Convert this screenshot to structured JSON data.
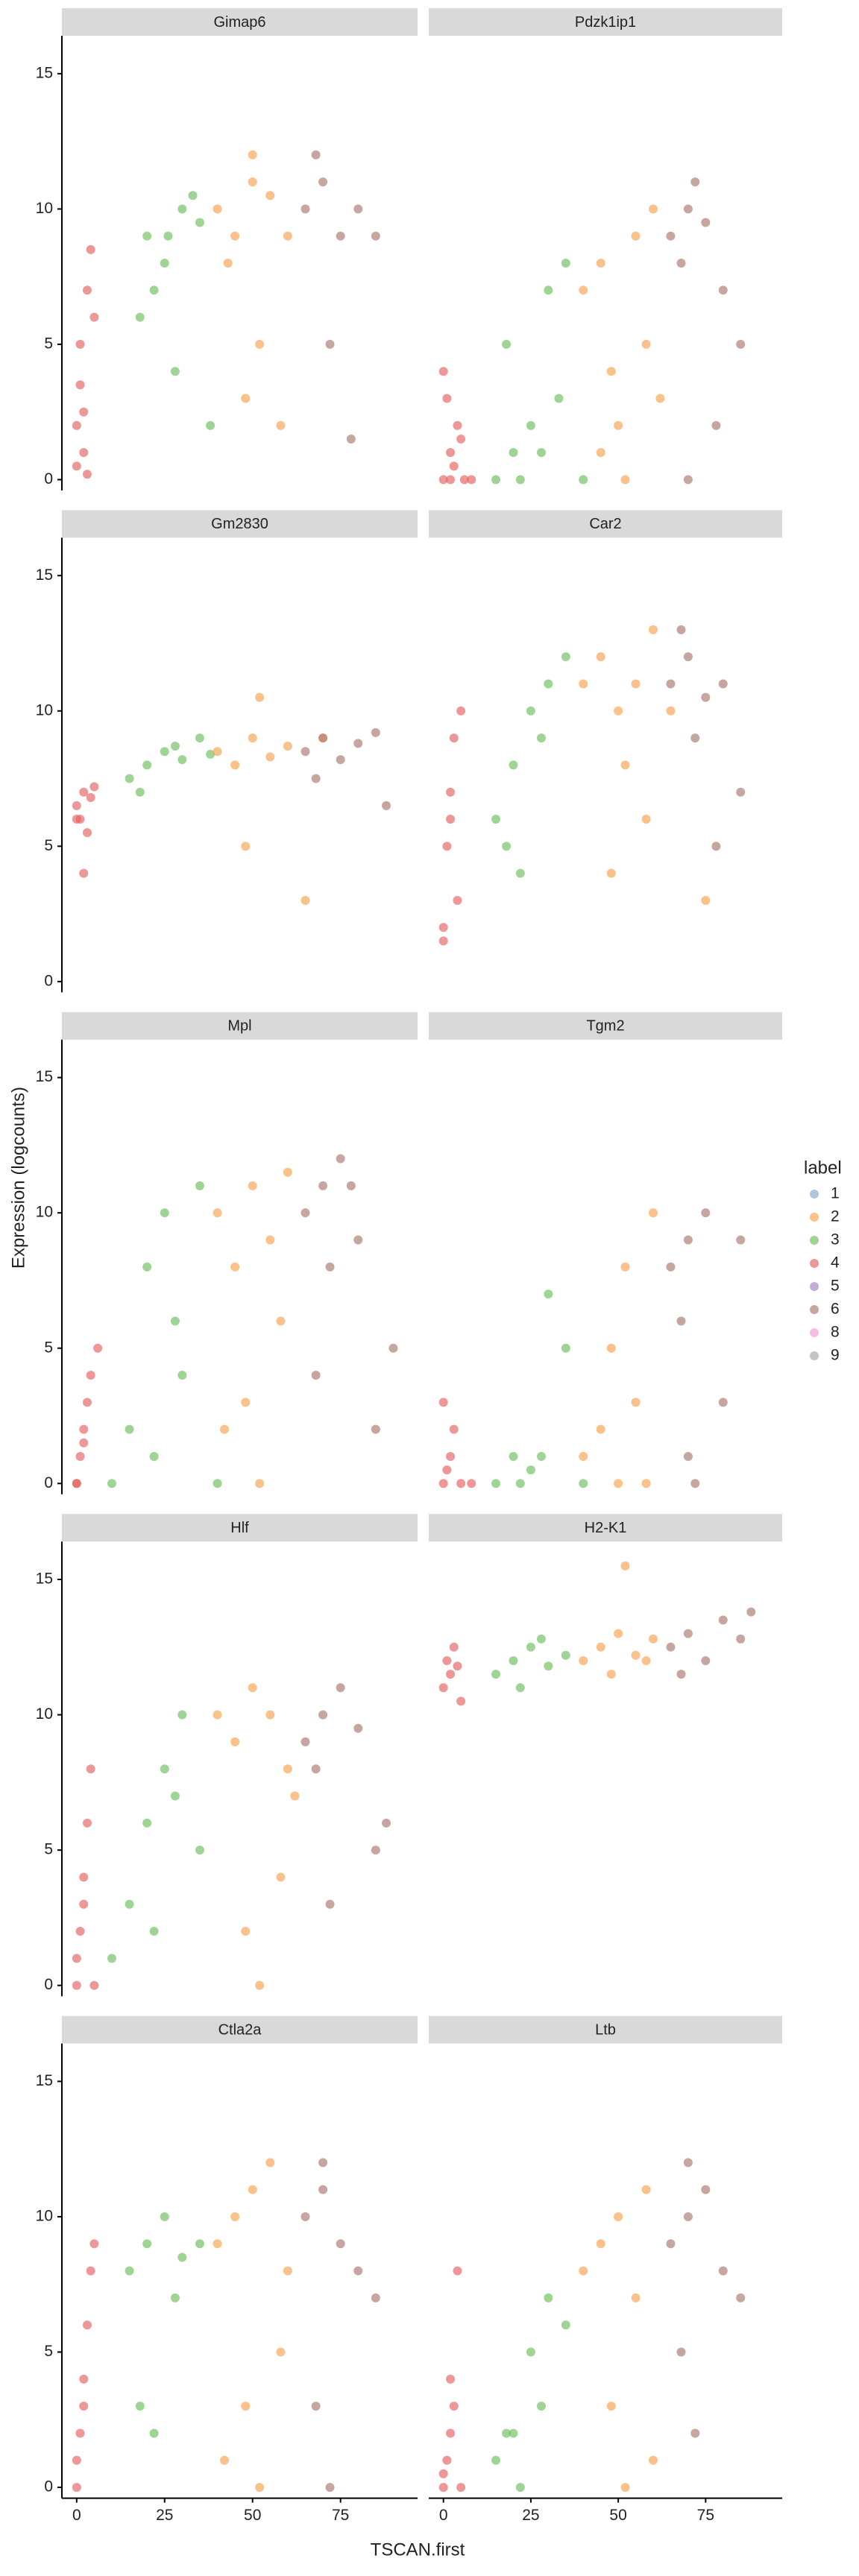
{
  "chart_data": {
    "type": "scatter",
    "xlabel": "TSCAN.first",
    "ylabel": "Expression (logcounts)",
    "legend_title": "label",
    "series": [
      {
        "name": "1",
        "color": "#7fa9cf"
      },
      {
        "name": "2",
        "color": "#f9a04c"
      },
      {
        "name": "3",
        "color": "#6cbf5a"
      },
      {
        "name": "4",
        "color": "#e4605e"
      },
      {
        "name": "5",
        "color": "#a57fc5"
      },
      {
        "name": "6",
        "color": "#a9776b"
      },
      {
        "name": "8",
        "color": "#f29ad6"
      },
      {
        "name": "9",
        "color": "#a5a5a5"
      }
    ],
    "xlim": [
      -4.2,
      96.9
    ],
    "ylim": [
      -0.4,
      16.4
    ],
    "xticks": [
      0,
      25,
      50,
      75
    ],
    "yticks": [
      0,
      5,
      10,
      15
    ],
    "facets": [
      {
        "title": "Gimap6",
        "groups": [
          {
            "name": "4",
            "x": [
              0,
              1,
              2,
              3,
              0,
              4,
              1,
              2,
              5,
              3
            ],
            "y": [
              2,
              3.5,
              1,
              7,
              0.5,
              8.5,
              5,
              2.5,
              6,
              0.2
            ]
          },
          {
            "name": "3",
            "x": [
              20,
              25,
              30,
              18,
              35,
              28,
              22,
              33,
              38,
              26
            ],
            "y": [
              9,
              8,
              10,
              6,
              9.5,
              4,
              7,
              10.5,
              2,
              9
            ]
          },
          {
            "name": "2",
            "x": [
              40,
              45,
              50,
              55,
              60,
              48,
              52,
              58,
              43,
              50
            ],
            "y": [
              10,
              9,
              11,
              10.5,
              9,
              3,
              5,
              2,
              8,
              12
            ]
          },
          {
            "name": "6",
            "x": [
              65,
              70,
              75,
              80,
              68,
              72,
              85,
              78
            ],
            "y": [
              10,
              11,
              9,
              10,
              12,
              5,
              9,
              1.5
            ]
          }
        ]
      },
      {
        "title": "Pdzk1ip1",
        "groups": [
          {
            "name": "4",
            "x": [
              0,
              2,
              4,
              1,
              3,
              6,
              0,
              5,
              2,
              8
            ],
            "y": [
              0,
              1,
              2,
              3,
              0.5,
              0,
              4,
              1.5,
              0,
              0
            ]
          },
          {
            "name": "3",
            "x": [
              15,
              20,
              25,
              30,
              35,
              22,
              28,
              18,
              33,
              40
            ],
            "y": [
              0,
              1,
              2,
              7,
              8,
              0,
              1,
              5,
              3,
              0
            ]
          },
          {
            "name": "2",
            "x": [
              40,
              45,
              50,
              55,
              60,
              48,
              52,
              58,
              62,
              45
            ],
            "y": [
              7,
              8,
              2,
              9,
              10,
              4,
              0,
              5,
              3,
              1
            ]
          },
          {
            "name": "6",
            "x": [
              65,
              70,
              75,
              68,
              72,
              80,
              78,
              85,
              70
            ],
            "y": [
              9,
              10,
              9.5,
              8,
              11,
              7,
              2,
              5,
              0
            ]
          }
        ]
      },
      {
        "title": "Gm2830",
        "groups": [
          {
            "name": "4",
            "x": [
              0,
              1,
              2,
              3,
              4,
              5,
              2,
              0
            ],
            "y": [
              6.5,
              6,
              7,
              5.5,
              6.8,
              7.2,
              4,
              6
            ]
          },
          {
            "name": "3",
            "x": [
              15,
              20,
              25,
              30,
              35,
              18,
              28,
              38
            ],
            "y": [
              7.5,
              8,
              8.5,
              8.2,
              9,
              7,
              8.7,
              8.4
            ]
          },
          {
            "name": "2",
            "x": [
              40,
              45,
              50,
              55,
              60,
              48,
              52,
              65,
              70
            ],
            "y": [
              8.5,
              8,
              9,
              8.3,
              8.7,
              5,
              10.5,
              3,
              9
            ]
          },
          {
            "name": "6",
            "x": [
              65,
              70,
              75,
              80,
              85,
              68,
              88
            ],
            "y": [
              8.5,
              9,
              8.2,
              8.8,
              9.2,
              7.5,
              6.5
            ]
          }
        ]
      },
      {
        "title": "Car2",
        "groups": [
          {
            "name": "4",
            "x": [
              0,
              1,
              2,
              3,
              4,
              0,
              2,
              5
            ],
            "y": [
              2,
              5,
              7,
              9,
              3,
              1.5,
              6,
              10
            ]
          },
          {
            "name": "3",
            "x": [
              15,
              20,
              25,
              30,
              35,
              22,
              28,
              18
            ],
            "y": [
              6,
              8,
              10,
              11,
              12,
              4,
              9,
              5
            ]
          },
          {
            "name": "2",
            "x": [
              40,
              45,
              50,
              55,
              60,
              48,
              52,
              58,
              75,
              65
            ],
            "y": [
              11,
              12,
              10,
              11,
              13,
              4,
              8,
              6,
              3,
              10
            ]
          },
          {
            "name": "6",
            "x": [
              65,
              70,
              75,
              80,
              68,
              72,
              85,
              78
            ],
            "y": [
              11,
              12,
              10.5,
              11,
              13,
              9,
              7,
              5
            ]
          }
        ]
      },
      {
        "title": "Mpl",
        "groups": [
          {
            "name": "4",
            "x": [
              0,
              1,
              2,
              3,
              4,
              6,
              0,
              2
            ],
            "y": [
              0,
              1,
              2,
              3,
              4,
              5,
              0,
              1.5
            ]
          },
          {
            "name": "3",
            "x": [
              10,
              15,
              20,
              25,
              30,
              35,
              22,
              28,
              40
            ],
            "y": [
              0,
              2,
              8,
              10,
              4,
              11,
              1,
              6,
              0
            ]
          },
          {
            "name": "2",
            "x": [
              40,
              45,
              50,
              55,
              60,
              48,
              52,
              58,
              42
            ],
            "y": [
              10,
              8,
              11,
              9,
              11.5,
              3,
              0,
              6,
              2
            ]
          },
          {
            "name": "6",
            "x": [
              65,
              70,
              75,
              80,
              68,
              72,
              85,
              78,
              90
            ],
            "y": [
              10,
              11,
              12,
              9,
              4,
              8,
              2,
              11,
              5
            ]
          }
        ]
      },
      {
        "title": "Tgm2",
        "groups": [
          {
            "name": "4",
            "x": [
              0,
              1,
              2,
              3,
              5,
              0,
              8
            ],
            "y": [
              0,
              0.5,
              1,
              2,
              0,
              3,
              0
            ]
          },
          {
            "name": "3",
            "x": [
              15,
              20,
              25,
              30,
              35,
              22,
              28,
              40
            ],
            "y": [
              0,
              1,
              0.5,
              7,
              5,
              0,
              1,
              0
            ]
          },
          {
            "name": "2",
            "x": [
              40,
              45,
              50,
              55,
              60,
              48,
              52,
              58
            ],
            "y": [
              1,
              2,
              0,
              3,
              10,
              5,
              8,
              0
            ]
          },
          {
            "name": "6",
            "x": [
              65,
              70,
              75,
              68,
              72,
              80,
              70,
              85
            ],
            "y": [
              8,
              9,
              10,
              6,
              0,
              3,
              1,
              9
            ]
          }
        ]
      },
      {
        "title": "Hlf",
        "groups": [
          {
            "name": "4",
            "x": [
              0,
              1,
              2,
              3,
              4,
              0,
              2,
              5
            ],
            "y": [
              0,
              2,
              4,
              6,
              8,
              1,
              3,
              0
            ]
          },
          {
            "name": "3",
            "x": [
              10,
              15,
              20,
              25,
              30,
              35,
              22,
              28
            ],
            "y": [
              1,
              3,
              6,
              8,
              10,
              5,
              2,
              7
            ]
          },
          {
            "name": "2",
            "x": [
              40,
              45,
              50,
              55,
              60,
              48,
              52,
              58,
              62
            ],
            "y": [
              10,
              9,
              11,
              10,
              8,
              2,
              0,
              4,
              7
            ]
          },
          {
            "name": "6",
            "x": [
              65,
              70,
              75,
              80,
              68,
              72,
              85,
              88
            ],
            "y": [
              9,
              10,
              11,
              9.5,
              8,
              3,
              5,
              6
            ]
          }
        ]
      },
      {
        "title": "H2-K1",
        "groups": [
          {
            "name": "4",
            "x": [
              0,
              1,
              2,
              3,
              4,
              5
            ],
            "y": [
              11,
              12,
              11.5,
              12.5,
              11.8,
              10.5
            ]
          },
          {
            "name": "3",
            "x": [
              15,
              20,
              25,
              30,
              35,
              22,
              28
            ],
            "y": [
              11.5,
              12,
              12.5,
              11.8,
              12.2,
              11,
              12.8
            ]
          },
          {
            "name": "2",
            "x": [
              40,
              45,
              50,
              55,
              60,
              48,
              52,
              58
            ],
            "y": [
              12,
              12.5,
              13,
              12.2,
              12.8,
              11.5,
              15.5,
              12
            ]
          },
          {
            "name": "6",
            "x": [
              65,
              70,
              75,
              80,
              85,
              68,
              88
            ],
            "y": [
              12.5,
              13,
              12,
              13.5,
              12.8,
              11.5,
              13.8
            ]
          }
        ]
      },
      {
        "title": "Ctla2a",
        "groups": [
          {
            "name": "4",
            "x": [
              0,
              1,
              2,
              3,
              4,
              0,
              2,
              5
            ],
            "y": [
              0,
              2,
              4,
              6,
              8,
              1,
              3,
              9
            ]
          },
          {
            "name": "3",
            "x": [
              15,
              20,
              25,
              30,
              35,
              22,
              28,
              18
            ],
            "y": [
              8,
              9,
              10,
              8.5,
              9,
              2,
              7,
              3
            ]
          },
          {
            "name": "2",
            "x": [
              40,
              45,
              50,
              55,
              60,
              48,
              52,
              58,
              42
            ],
            "y": [
              9,
              10,
              11,
              12,
              8,
              3,
              0,
              5,
              1
            ]
          },
          {
            "name": "6",
            "x": [
              65,
              70,
              75,
              80,
              68,
              72,
              85,
              70
            ],
            "y": [
              10,
              11,
              9,
              8,
              3,
              0,
              7,
              12
            ]
          }
        ]
      },
      {
        "title": "Ltb",
        "groups": [
          {
            "name": "4",
            "x": [
              0,
              1,
              2,
              3,
              4,
              0,
              2,
              5
            ],
            "y": [
              0,
              1,
              2,
              3,
              8,
              0.5,
              4,
              0
            ]
          },
          {
            "name": "3",
            "x": [
              15,
              20,
              25,
              30,
              35,
              22,
              28,
              18
            ],
            "y": [
              1,
              2,
              5,
              7,
              6,
              0,
              3,
              2
            ]
          },
          {
            "name": "2",
            "x": [
              40,
              45,
              50,
              55,
              60,
              48,
              52,
              58
            ],
            "y": [
              8,
              9,
              10,
              7,
              1,
              3,
              0,
              11
            ]
          },
          {
            "name": "6",
            "x": [
              65,
              70,
              75,
              80,
              68,
              72,
              85,
              70
            ],
            "y": [
              9,
              10,
              11,
              8,
              5,
              2,
              7,
              12
            ]
          }
        ]
      }
    ]
  }
}
